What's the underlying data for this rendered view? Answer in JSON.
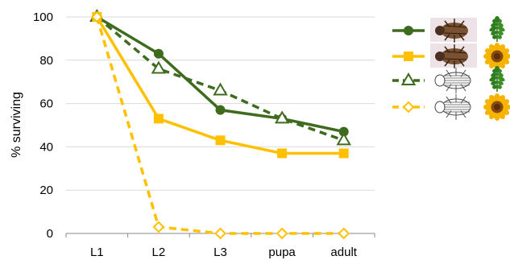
{
  "chart_data": {
    "type": "line",
    "categories": [
      "L1",
      "L2",
      "L3",
      "pupa",
      "adult"
    ],
    "ylabel": "% surviving",
    "ylim": [
      0,
      100
    ],
    "yticks": [
      0,
      20,
      40,
      60,
      80,
      100
    ],
    "grid": "horizontal",
    "legend_position": "right",
    "series": [
      {
        "values": [
          100,
          83,
          57,
          53,
          47
        ],
        "color": "#3f6b1f",
        "dash": "solid",
        "marker": "filled-circle",
        "legend_icons": [
          "beetle-photo-icon",
          "fern-leaf-icon"
        ]
      },
      {
        "values": [
          100,
          53,
          43,
          37,
          37
        ],
        "color": "#ffc000",
        "dash": "solid",
        "marker": "filled-square",
        "legend_icons": [
          "beetle-photo-icon",
          "sunflower-icon"
        ]
      },
      {
        "values": [
          100,
          76,
          66,
          53,
          43
        ],
        "color": "#3f6b1f",
        "dash": "dashed",
        "marker": "open-triangle",
        "legend_icons": [
          "beetle-drawing-icon",
          "fern-leaf-icon"
        ]
      },
      {
        "values": [
          100,
          3,
          0,
          0,
          0
        ],
        "color": "#ffc000",
        "dash": "dashed",
        "marker": "open-diamond",
        "legend_icons": [
          "beetle-drawing-icon",
          "sunflower-icon"
        ]
      }
    ]
  }
}
